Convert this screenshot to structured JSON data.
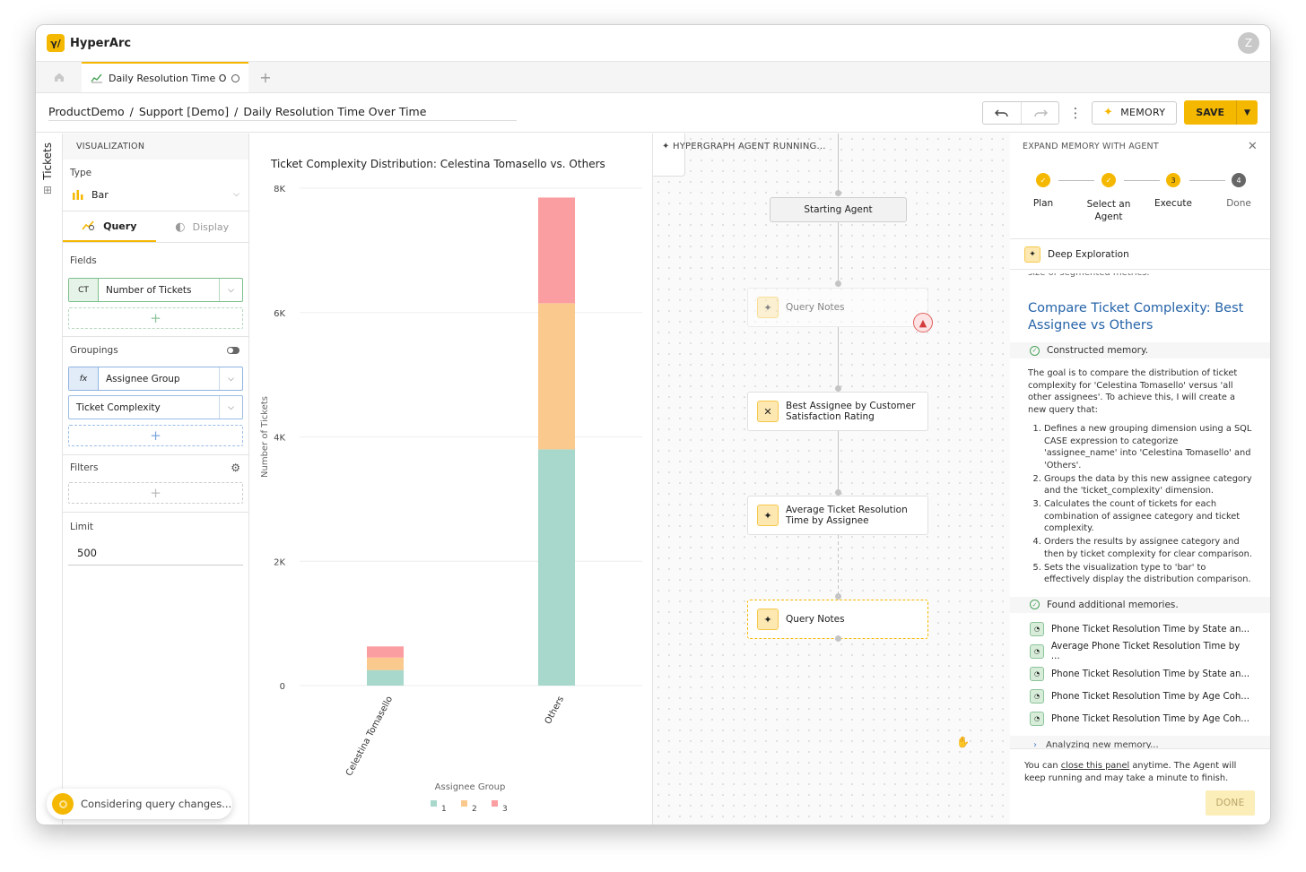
{
  "app": {
    "name": "HyperArc",
    "logo_glyph": "γ/",
    "avatar_initial": "Z"
  },
  "tabs": [
    {
      "label": "Daily Resolution Time Ov...",
      "icon": "chart-line-icon"
    }
  ],
  "breadcrumb": {
    "items": [
      "ProductDemo",
      "Support [Demo]",
      "Daily Resolution Time Over Time"
    ],
    "separator": "/"
  },
  "toolbar": {
    "memory_label": "MEMORY",
    "save_label": "SAVE"
  },
  "side_tab": {
    "label": "Tickets"
  },
  "visualization": {
    "header": "VISUALIZATION",
    "type_label": "Type",
    "type_value": "Bar",
    "tab_query": "Query",
    "tab_display": "Display",
    "fields_label": "Fields",
    "field": {
      "tag": "CT",
      "name": "Number of Tickets"
    },
    "groupings_label": "Groupings",
    "grouping_1": {
      "tag": "fx",
      "name": "Assignee Group"
    },
    "grouping_2": {
      "name": "Ticket Complexity"
    },
    "filters_label": "Filters",
    "limit_label": "Limit",
    "limit_value": "500"
  },
  "toast": {
    "text": "Considering query changes..."
  },
  "chart_data": {
    "type": "bar",
    "stacked": true,
    "title": "Ticket Complexity Distribution: Celestina Tomasello vs. Others",
    "xlabel": "Assignee Group",
    "ylabel": "Number of Tickets",
    "categories": [
      "Celestina Tomasello",
      "Others"
    ],
    "ylim": [
      0,
      8000
    ],
    "yticks": [
      0,
      2000,
      4000,
      6000,
      8000
    ],
    "ytick_labels": [
      "0",
      "2K",
      "4K",
      "6K",
      "8K"
    ],
    "series": [
      {
        "name": "1",
        "color": "#a8d8cb",
        "values": [
          250,
          3800
        ]
      },
      {
        "name": "2",
        "color": "#fac98e",
        "values": [
          200,
          2350
        ]
      },
      {
        "name": "3",
        "color": "#fb9ea2",
        "values": [
          180,
          1700
        ]
      }
    ],
    "legend_position": "bottom",
    "grid": true
  },
  "graph": {
    "header": "HYPERGRAPH AGENT RUNNING...",
    "start_node": "Starting Agent",
    "nodes": [
      {
        "label": "Query Notes",
        "icon": "sparkle-icon",
        "state": "faded"
      },
      {
        "label": "Best Assignee by Customer Satisfaction Rating",
        "icon": "tools-icon",
        "state": "normal"
      },
      {
        "label": "Average Ticket Resolution Time by Assignee",
        "icon": "sparkle-icon",
        "state": "normal"
      },
      {
        "label": "Query Notes",
        "icon": "sparkle-icon",
        "state": "active"
      }
    ]
  },
  "agent_panel": {
    "header": "EXPAND MEMORY WITH AGENT",
    "steps": [
      {
        "label": "Plan",
        "state": "done",
        "num": "✓"
      },
      {
        "label": "Select an Agent",
        "state": "done",
        "num": "✓"
      },
      {
        "label": "Execute",
        "state": "current",
        "num": "3"
      },
      {
        "label": "Done",
        "state": "todo",
        "num": "4"
      }
    ],
    "exploration": "Deep Exploration",
    "cutoff_text": "size of segmented metrics.",
    "title": "Compare Ticket Complexity: Best Assignee vs Others",
    "status_constructed": "Constructed memory.",
    "description": "The goal is to compare the distribution of ticket complexity for 'Celestina Tomasello' versus 'all other assignees'. To achieve this, I will create a new query that:",
    "plan_items": [
      "Defines a new grouping dimension using a SQL CASE expression to categorize 'assignee_name' into 'Celestina Tomasello' and 'Others'.",
      "Groups the data by this new assignee category and the 'ticket_complexity' dimension.",
      "Calculates the count of tickets for each combination of assignee category and ticket complexity.",
      "Orders the results by assignee category and then by ticket complexity for clear comparison.",
      "Sets the visualization type to 'bar' to effectively display the distribution comparison."
    ],
    "status_found": "Found additional memories.",
    "memories": [
      "Phone Ticket Resolution Time by State an...",
      "Average Phone Ticket Resolution Time by ...",
      "Phone Ticket Resolution Time by State an...",
      "Phone Ticket Resolution Time by Age Coh...",
      "Phone Ticket Resolution Time by Age Coh..."
    ],
    "analyzing": "Analyzing new memory...",
    "footer_pre": "You can",
    "footer_link": "close this panel",
    "footer_post": "anytime. The Agent will keep running and may take a minute to finish.",
    "done_label": "DONE"
  }
}
